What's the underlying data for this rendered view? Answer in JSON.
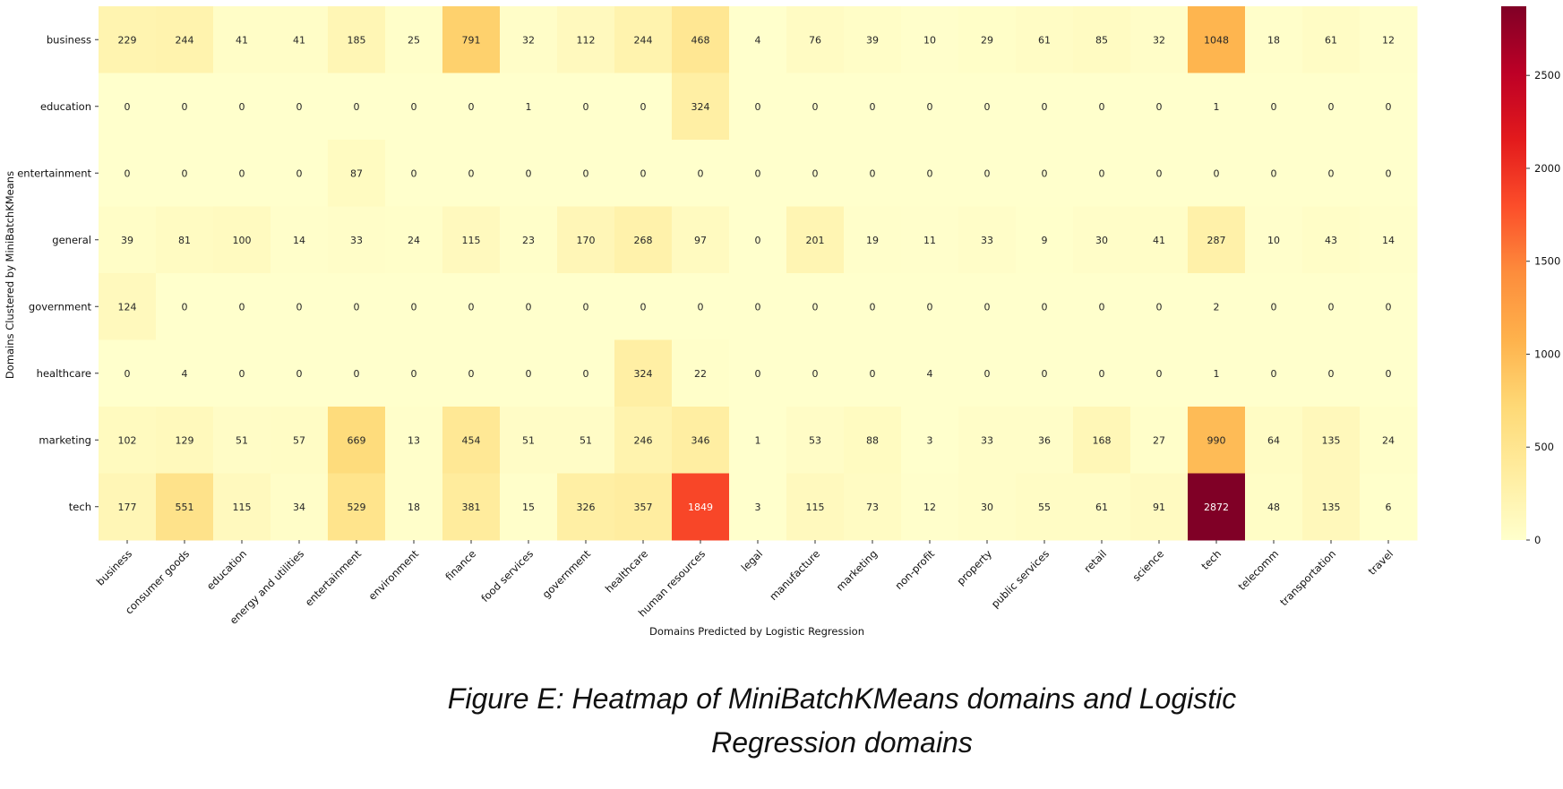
{
  "chart_data": {
    "type": "heatmap",
    "xlabel": "Domains Predicted by Logistic Regression",
    "ylabel": "Domains Clustered by MiniBatchKMeans",
    "x_categories": [
      "business",
      "consumer goods",
      "education",
      "energy and utilities",
      "entertainment",
      "environment",
      "finance",
      "food services",
      "government",
      "healthcare",
      "human resources",
      "legal",
      "manufacture",
      "marketing",
      "non-profit",
      "property",
      "public services",
      "retail",
      "science",
      "tech",
      "telecomm",
      "transportation",
      "travel"
    ],
    "y_categories": [
      "business",
      "education",
      "entertainment",
      "general",
      "government",
      "healthcare",
      "marketing",
      "tech"
    ],
    "values": [
      [
        229,
        244,
        41,
        41,
        185,
        25,
        791,
        32,
        112,
        244,
        468,
        4,
        76,
        39,
        10,
        29,
        61,
        85,
        32,
        1048,
        18,
        61,
        12
      ],
      [
        0,
        0,
        0,
        0,
        0,
        0,
        0,
        1,
        0,
        0,
        324,
        0,
        0,
        0,
        0,
        0,
        0,
        0,
        0,
        1,
        0,
        0,
        0
      ],
      [
        0,
        0,
        0,
        0,
        87,
        0,
        0,
        0,
        0,
        0,
        0,
        0,
        0,
        0,
        0,
        0,
        0,
        0,
        0,
        0,
        0,
        0,
        0
      ],
      [
        39,
        81,
        100,
        14,
        33,
        24,
        115,
        23,
        170,
        268,
        97,
        0,
        201,
        19,
        11,
        33,
        9,
        30,
        41,
        287,
        10,
        43,
        14
      ],
      [
        124,
        0,
        0,
        0,
        0,
        0,
        0,
        0,
        0,
        0,
        0,
        0,
        0,
        0,
        0,
        0,
        0,
        0,
        0,
        2,
        0,
        0,
        0
      ],
      [
        0,
        4,
        0,
        0,
        0,
        0,
        0,
        0,
        0,
        324,
        22,
        0,
        0,
        0,
        4,
        0,
        0,
        0,
        0,
        1,
        0,
        0,
        0
      ],
      [
        102,
        129,
        51,
        57,
        669,
        13,
        454,
        51,
        51,
        246,
        346,
        1,
        53,
        88,
        3,
        33,
        36,
        168,
        27,
        990,
        64,
        135,
        24
      ],
      [
        177,
        551,
        115,
        34,
        529,
        18,
        381,
        15,
        326,
        357,
        1849,
        3,
        115,
        73,
        12,
        30,
        55,
        61,
        91,
        2872,
        48,
        135,
        6
      ]
    ],
    "colorbar": {
      "min": 0,
      "max": 2872,
      "ticks": [
        0,
        500,
        1000,
        1500,
        2000,
        2500
      ],
      "colormap": "YlOrRd"
    }
  },
  "caption": {
    "line1": "Figure E: Heatmap of MiniBatchKMeans domains and Logistic",
    "line2": "Regression domains"
  }
}
